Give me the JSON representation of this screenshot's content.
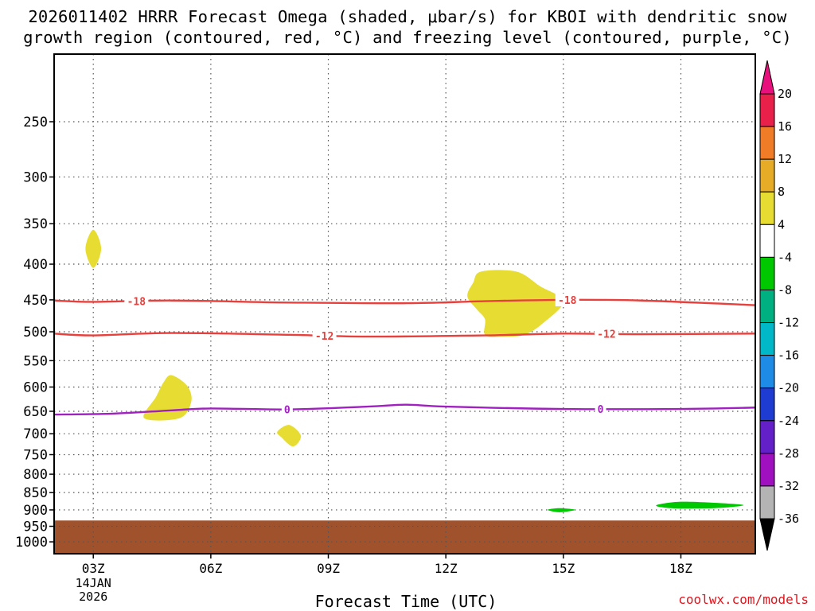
{
  "title": {
    "line1": "2026011402 HRRR Forecast Omega (shaded, μbar/s) for KBOI with dendritic snow",
    "line2": "growth region (contoured, red, °C) and freezing level (contoured, purple, °C)"
  },
  "credit": "coolwx.com/models",
  "chart_data": {
    "type": "heatmap",
    "title": "2026011402 HRRR Forecast Omega (shaded, μbar/s) for KBOI with dendritic snow growth region (contoured, red, °C) and freezing level (contoured, purple, °C)",
    "xlabel": "Forecast Time (UTC)",
    "ylabel": "",
    "x_ticks": [
      {
        "hour": 3,
        "label": "03Z"
      },
      {
        "hour": 6,
        "label": "06Z"
      },
      {
        "hour": 9,
        "label": "09Z"
      },
      {
        "hour": 12,
        "label": "12Z"
      },
      {
        "hour": 15,
        "label": "15Z"
      },
      {
        "hour": 18,
        "label": "18Z"
      }
    ],
    "date_label": [
      "14JAN",
      "2026"
    ],
    "xlim": [
      2,
      19.9
    ],
    "y_ticks": [
      250,
      300,
      350,
      400,
      450,
      500,
      550,
      600,
      650,
      700,
      750,
      800,
      850,
      900,
      950,
      1000
    ],
    "ylim_hPa": [
      200,
      1040
    ],
    "y_scale": "log-pressure (inverted)",
    "grid": true,
    "ground_level_hPa": 932,
    "ground_color": "#a0522d",
    "omega_regions": [
      {
        "level": "4 to 8",
        "color": "#e6dc32",
        "points": [
          [
            3.0,
            357
          ],
          [
            3.2,
            380
          ],
          [
            3.0,
            405
          ],
          [
            2.8,
            380
          ]
        ]
      },
      {
        "level": "4 to 8",
        "color": "#e6dc32",
        "points": [
          [
            5.0,
            577
          ],
          [
            5.4,
            598
          ],
          [
            5.5,
            630
          ],
          [
            5.2,
            665
          ],
          [
            4.3,
            665
          ],
          [
            4.6,
            620
          ],
          [
            4.8,
            590
          ]
        ]
      },
      {
        "level": "4 to 8",
        "color": "#e6dc32",
        "points": [
          [
            8.0,
            680
          ],
          [
            8.3,
            705
          ],
          [
            8.1,
            730
          ],
          [
            7.8,
            708
          ],
          [
            7.7,
            695
          ]
        ]
      },
      {
        "level": "4 to 8",
        "color": "#e6dc32",
        "points": [
          [
            12.9,
            410
          ],
          [
            13.8,
            410
          ],
          [
            14.4,
            430
          ],
          [
            15.0,
            452
          ],
          [
            14.5,
            485
          ],
          [
            14.0,
            505
          ],
          [
            13.4,
            508
          ],
          [
            13.0,
            505
          ],
          [
            13.0,
            480
          ],
          [
            12.8,
            465
          ],
          [
            12.55,
            445
          ],
          [
            12.7,
            425
          ]
        ]
      },
      {
        "level": "-4 to -8",
        "color": "#00c800",
        "points": [
          [
            14.6,
            900
          ],
          [
            14.9,
            895
          ],
          [
            15.3,
            900
          ],
          [
            14.9,
            907
          ]
        ]
      },
      {
        "level": "-4 to -8",
        "color": "#00c800",
        "points": [
          [
            17.4,
            885
          ],
          [
            18.0,
            876
          ],
          [
            19.0,
            880
          ],
          [
            19.6,
            886
          ],
          [
            19.0,
            894
          ],
          [
            18.0,
            896
          ],
          [
            17.5,
            892
          ]
        ]
      }
    ],
    "contours": [
      {
        "name": "-18",
        "color": "#e8403c",
        "points": [
          [
            2,
            451
          ],
          [
            3,
            453
          ],
          [
            5,
            451
          ],
          [
            8,
            454
          ],
          [
            11,
            455
          ],
          [
            13,
            452
          ],
          [
            15,
            450
          ],
          [
            17,
            451
          ],
          [
            19.9,
            458
          ]
        ],
        "label_hours": [
          4.1,
          15.1
        ]
      },
      {
        "name": "-12",
        "color": "#e8403c",
        "points": [
          [
            2,
            503
          ],
          [
            3,
            506
          ],
          [
            5,
            502
          ],
          [
            8,
            505
          ],
          [
            10,
            508
          ],
          [
            13,
            506
          ],
          [
            15,
            503
          ],
          [
            17,
            504
          ],
          [
            19.9,
            503
          ]
        ],
        "label_hours": [
          8.9,
          16.1
        ]
      },
      {
        "name": "0",
        "color": "#a020c0",
        "points": [
          [
            2,
            657
          ],
          [
            3.5,
            655
          ],
          [
            5,
            648
          ],
          [
            6,
            644
          ],
          [
            8,
            646
          ],
          [
            10,
            640
          ],
          [
            11,
            636
          ],
          [
            12,
            640
          ],
          [
            15,
            645
          ],
          [
            18,
            645
          ],
          [
            19.9,
            642
          ]
        ],
        "label_hours": [
          7.95,
          15.95
        ]
      }
    ],
    "colorbar": {
      "labels": [
        "20",
        "16",
        "12",
        "8",
        "4",
        "-4",
        "-8",
        "-12",
        "-16",
        "-20",
        "-24",
        "-28",
        "-32",
        "-36"
      ],
      "bands": [
        {
          "color": "#e8204a"
        },
        {
          "color": "#f07c28"
        },
        {
          "color": "#e6ac28"
        },
        {
          "color": "#e6dc32"
        },
        {
          "color": "#ffffff"
        },
        {
          "color": "#00c800"
        },
        {
          "color": "#00b080"
        },
        {
          "color": "#00b8c8"
        },
        {
          "color": "#1e8ce6"
        },
        {
          "color": "#1e3cd2"
        },
        {
          "color": "#6420c8"
        },
        {
          "color": "#a010c0"
        },
        {
          "color": "#b4b4b4"
        }
      ],
      "top_arrow_color": "#e8107c",
      "bottom_arrow_color": "#000000"
    }
  }
}
